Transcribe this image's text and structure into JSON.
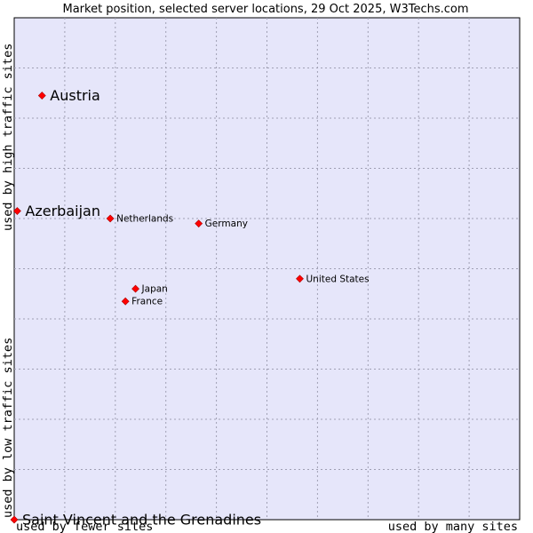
{
  "chart_data": {
    "type": "scatter",
    "title": "Market position, selected server locations, 29 Oct 2025, W3Techs.com",
    "xlabel_left": "used by fewer sites",
    "xlabel_right": "used by many sites",
    "ylabel_low": "used by low traffic sites",
    "ylabel_high": "used by high traffic sites",
    "xlim": [
      0,
      100
    ],
    "ylim": [
      0,
      100
    ],
    "grid": true,
    "colors": {
      "plot_bg": "#e6e6fa",
      "grid": "#a0a0b4",
      "marker": "#ff0000",
      "axis": "#000000"
    },
    "points": [
      {
        "label": "Austria",
        "x": 5.5,
        "y": 84.5,
        "emphasis": true
      },
      {
        "label": "Azerbaijan",
        "x": 0.6,
        "y": 61.5,
        "emphasis": true
      },
      {
        "label": "Netherlands",
        "x": 19.0,
        "y": 60.0,
        "emphasis": false
      },
      {
        "label": "Germany",
        "x": 36.5,
        "y": 59.0,
        "emphasis": false
      },
      {
        "label": "United States",
        "x": 56.5,
        "y": 48.0,
        "emphasis": false
      },
      {
        "label": "Japan",
        "x": 24.0,
        "y": 46.0,
        "emphasis": false
      },
      {
        "label": "France",
        "x": 22.0,
        "y": 43.5,
        "emphasis": false
      },
      {
        "label": "Saint Vincent and the Grenadines",
        "x": 0.0,
        "y": 0.0,
        "emphasis": true
      }
    ]
  }
}
